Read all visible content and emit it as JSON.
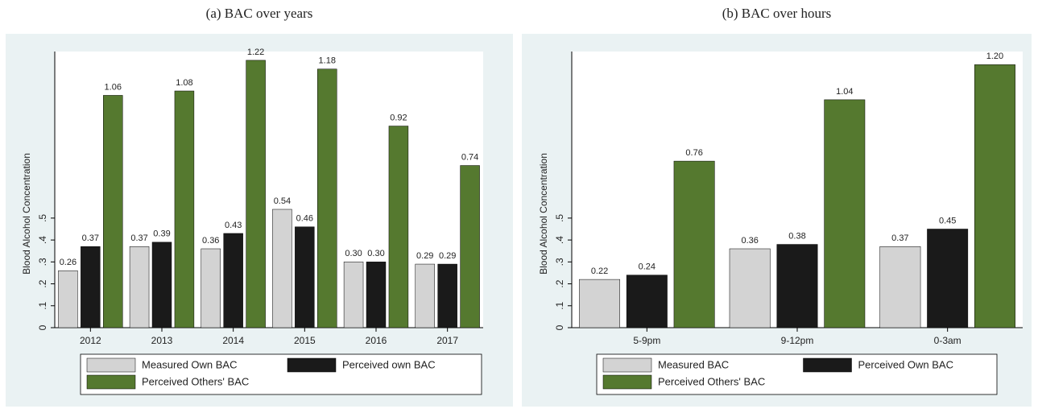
{
  "chart_data": [
    {
      "type": "bar",
      "title": "(a) BAC over years",
      "y_label": "Blood Alcohol Concentration",
      "categories": [
        "2012",
        "2013",
        "2014",
        "2015",
        "2016",
        "2017"
      ],
      "series": [
        {
          "name": "Measured Own BAC",
          "color": "#d3d3d3",
          "values": [
            0.26,
            0.37,
            0.36,
            0.54,
            0.3,
            0.29
          ],
          "value_labels": [
            "0.26",
            "0.37",
            "0.36",
            "0.54",
            "0.30",
            "0.29"
          ]
        },
        {
          "name": "Perceived own BAC",
          "color": "#1a1a1a",
          "values": [
            0.37,
            0.39,
            0.43,
            0.46,
            0.3,
            0.29
          ],
          "value_labels": [
            "0.37",
            "0.39",
            "0.43",
            "0.46",
            "0.30",
            "0.29"
          ]
        },
        {
          "name": "Perceived Others' BAC",
          "color": "#55792f",
          "values": [
            1.06,
            1.08,
            1.22,
            1.18,
            0.92,
            0.74
          ],
          "value_labels": [
            "1.06",
            "1.08",
            "1.22",
            "1.18",
            "0.92",
            "0.74"
          ]
        }
      ],
      "ylim": [
        0,
        1.26
      ],
      "yticks": [
        0,
        {
          "value": 0.1,
          "label": ".1"
        },
        {
          "value": 0.2,
          "label": ".2"
        },
        {
          "value": 0.3,
          "label": ".3"
        },
        {
          "value": 0.4,
          "label": ".4"
        },
        {
          "value": 0.5,
          "label": ".5"
        }
      ],
      "grid": false
    },
    {
      "type": "bar",
      "title": "(b) BAC over hours",
      "y_label": "Blood Alcohol Concentration",
      "categories": [
        "5-9pm",
        "9-12pm",
        "0-3am"
      ],
      "series": [
        {
          "name": "Measured BAC",
          "color": "#d3d3d3",
          "values": [
            0.22,
            0.36,
            0.37
          ],
          "value_labels": [
            "0.22",
            "0.36",
            "0.37"
          ]
        },
        {
          "name": "Perceived Own BAC",
          "color": "#1a1a1a",
          "values": [
            0.24,
            0.38,
            0.45
          ],
          "value_labels": [
            "0.24",
            "0.38",
            "0.45"
          ]
        },
        {
          "name": "Perceived Others' BAC",
          "color": "#55792f",
          "values": [
            0.76,
            1.04,
            1.2
          ],
          "value_labels": [
            "0.76",
            "1.04",
            "1.20"
          ]
        }
      ],
      "ylim": [
        0,
        1.26
      ],
      "yticks": [
        0,
        {
          "value": 0.1,
          "label": ".1"
        },
        {
          "value": 0.2,
          "label": ".2"
        },
        {
          "value": 0.3,
          "label": ".3"
        },
        {
          "value": 0.4,
          "label": ".4"
        },
        {
          "value": 0.5,
          "label": ".5"
        }
      ],
      "grid": false
    }
  ]
}
